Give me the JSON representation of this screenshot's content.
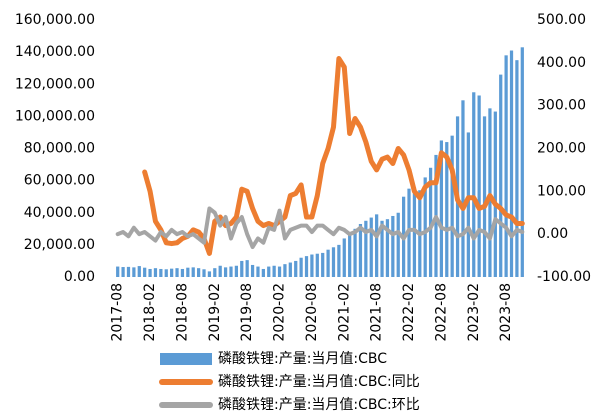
{
  "chart_data": {
    "type": "bar-line",
    "categories": [
      "2017-08",
      null,
      null,
      null,
      null,
      null,
      "2018-02",
      null,
      null,
      null,
      null,
      null,
      "2018-08",
      null,
      null,
      null,
      null,
      null,
      "2019-02",
      null,
      null,
      null,
      null,
      null,
      "2019-08",
      null,
      null,
      null,
      null,
      null,
      "2020-02",
      null,
      null,
      null,
      null,
      null,
      "2020-08",
      null,
      null,
      null,
      null,
      null,
      "2021-02",
      null,
      null,
      null,
      null,
      null,
      "2021-08",
      null,
      null,
      null,
      null,
      null,
      "2022-02",
      null,
      null,
      null,
      null,
      null,
      "2022-08",
      null,
      null,
      null,
      null,
      null,
      "2023-02",
      null,
      null,
      null,
      null,
      null,
      "2023-08",
      null,
      null,
      null
    ],
    "series": [
      {
        "name": "磷酸铁锂:产量:当月值:CBC",
        "type": "bar",
        "color": "#5b9bd5",
        "values": [
          6500,
          6200,
          6300,
          6000,
          6800,
          5800,
          5000,
          5500,
          5000,
          4800,
          5200,
          5500,
          5000,
          5800,
          6000,
          5500,
          4800,
          3500,
          5500,
          7000,
          6000,
          6500,
          7000,
          10000,
          10500,
          7500,
          6500,
          5000,
          6500,
          7000,
          6500,
          8000,
          9000,
          10000,
          12000,
          13000,
          14000,
          14500,
          15000,
          17000,
          18500,
          20000,
          24000,
          28000,
          30000,
          33000,
          35000,
          37000,
          39000,
          35000,
          36000,
          38000,
          40000,
          50000,
          55000,
          56000,
          54000,
          62000,
          68000,
          76000,
          85000,
          84000,
          88000,
          100000,
          110000,
          90000,
          115000,
          113000,
          100000,
          105000,
          103000,
          126000,
          138000,
          141000,
          135000,
          143000
        ]
      },
      {
        "name": "磷酸铁锂:产量:当月值:CBC:同比",
        "type": "line",
        "axis": "y2",
        "color": "#ed7d31",
        "values": [
          null,
          null,
          null,
          null,
          null,
          145,
          100,
          30,
          10,
          -20,
          -22,
          -20,
          -10,
          -5,
          10,
          5,
          -10,
          -45,
          30,
          40,
          20,
          25,
          40,
          105,
          100,
          60,
          30,
          20,
          25,
          20,
          30,
          40,
          90,
          95,
          115,
          40,
          40,
          90,
          165,
          200,
          250,
          410,
          390,
          235,
          270,
          250,
          215,
          170,
          150,
          175,
          180,
          165,
          200,
          185,
          150,
          100,
          85,
          110,
          120,
          120,
          190,
          180,
          150,
          80,
          60,
          85,
          85,
          60,
          65,
          90,
          70,
          60,
          45,
          40,
          25,
          25
        ]
      },
      {
        "name": "磷酸铁锂:产量:当月值:CBC:环比",
        "type": "line",
        "axis": "y2",
        "color": "#a5a5a5",
        "values": [
          0,
          5,
          -5,
          15,
          0,
          5,
          -5,
          -15,
          5,
          -5,
          10,
          0,
          5,
          -5,
          0,
          -10,
          -20,
          60,
          50,
          20,
          40,
          -10,
          25,
          40,
          0,
          -30,
          -10,
          -20,
          15,
          10,
          55,
          -10,
          10,
          15,
          20,
          20,
          5,
          20,
          20,
          10,
          0,
          15,
          10,
          0,
          5,
          15,
          5,
          10,
          -5,
          20,
          10,
          0,
          5,
          -10,
          10,
          10,
          0,
          5,
          15,
          40,
          15,
          10,
          15,
          -5,
          0,
          15,
          -10,
          10,
          5,
          -10,
          35,
          25,
          15,
          -5,
          10,
          5
        ]
      }
    ],
    "ylim": [
      0,
      160000
    ],
    "yticks": [
      {
        "value": 0,
        "label": "0.00"
      },
      {
        "value": 20000,
        "label": "20,000.00"
      },
      {
        "value": 40000,
        "label": "40,000.00"
      },
      {
        "value": 60000,
        "label": "60,000.00"
      },
      {
        "value": 80000,
        "label": "80,000.00"
      },
      {
        "value": 100000,
        "label": "100,000.00"
      },
      {
        "value": 120000,
        "label": "120,000.00"
      },
      {
        "value": 140000,
        "label": "140,000.00"
      },
      {
        "value": 160000,
        "label": "160,000.00"
      }
    ],
    "y2lim": [
      -100,
      500
    ],
    "y2ticks": [
      {
        "value": -100,
        "label": "-100.00"
      },
      {
        "value": 0,
        "label": "0.00"
      },
      {
        "value": 100,
        "label": "100.00"
      },
      {
        "value": 200,
        "label": "200.00"
      },
      {
        "value": 300,
        "label": "300.00"
      },
      {
        "value": 400,
        "label": "400.00"
      },
      {
        "value": 500,
        "label": "500.00"
      }
    ],
    "grid": false
  }
}
